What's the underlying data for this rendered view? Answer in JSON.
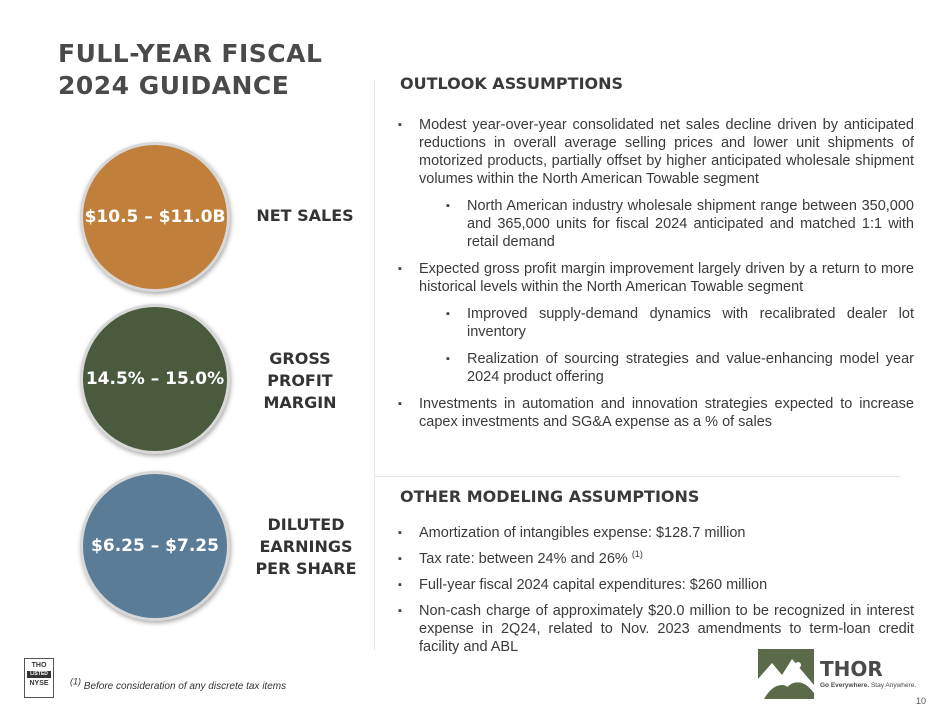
{
  "title": {
    "line1": "FULL-YEAR FISCAL",
    "line2": "2024 GUIDANCE"
  },
  "metrics": [
    {
      "value": "$10.5 – $11.0B",
      "label_lines": [
        "NET SALES"
      ],
      "color": "#c07f3a"
    },
    {
      "value": "14.5% – 15.0%",
      "label_lines": [
        "GROSS",
        "PROFIT",
        "MARGIN"
      ],
      "color": "#4a5a3c"
    },
    {
      "value": "$6.25 – $7.25",
      "label_lines": [
        "DILUTED",
        "EARNINGS",
        "PER SHARE"
      ],
      "color": "#5a7c97"
    }
  ],
  "outlook": {
    "title": "OUTLOOK ASSUMPTIONS",
    "items": [
      "Modest year-over-year consolidated net sales decline driven by anticipated reductions in overall average selling prices and lower unit shipments of motorized products, partially offset by higher anticipated wholesale shipment volumes within the North American Towable segment",
      "North American industry wholesale shipment range between 350,000 and 365,000 units for fiscal 2024 anticipated and matched 1:1 with retail demand",
      "Expected gross profit margin improvement largely driven by a return to more historical levels within the North American Towable segment",
      "Improved supply-demand dynamics with recalibrated dealer lot inventory",
      "Realization of sourcing strategies and value-enhancing model year 2024 product offering",
      "Investments in automation and innovation strategies expected to increase capex investments and SG&A expense as a % of sales"
    ]
  },
  "other": {
    "title": "OTHER MODELING ASSUMPTIONS",
    "items": [
      "Amortization of intangibles expense: $128.7 million",
      "Tax rate: between 24% and 26%",
      "Full-year fiscal 2024 capital expenditures: $260 million",
      "Non-cash charge of approximately $20.0 million to be recognized in interest expense in 2Q24, related to Nov. 2023 amendments to term-loan credit facility and ABL"
    ],
    "tax_superscript": "(1)"
  },
  "footnote": {
    "marker": "(1)",
    "text": "Before consideration of any discrete tax items"
  },
  "nyse": {
    "line1": "THO",
    "line2": "LISTED",
    "line3": "NYSE"
  },
  "brand": {
    "name": "THOR",
    "tagline_bold": "Go Everywhere.",
    "tagline_rest": "Stay Anywhere."
  },
  "page_number": "10",
  "bullet_glyph": "▪"
}
